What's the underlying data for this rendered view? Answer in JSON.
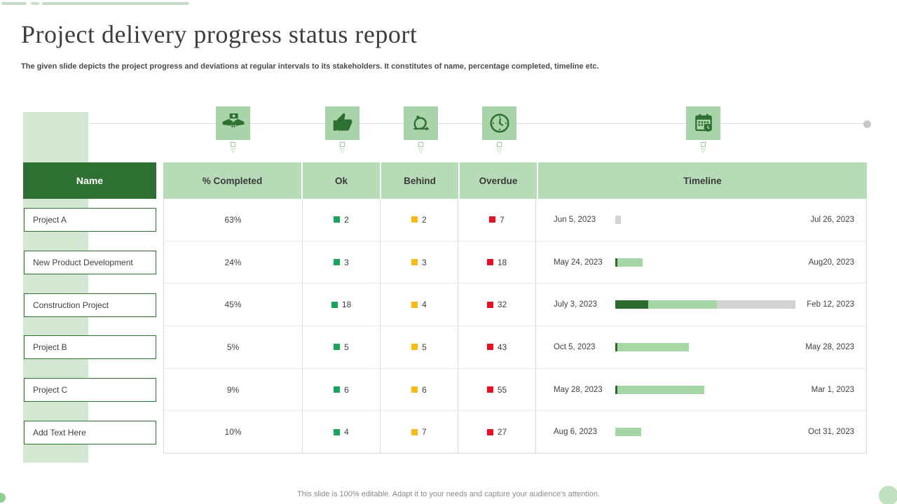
{
  "slide": {
    "title": "Project delivery progress status report",
    "subtitle": "The given slide depicts the project progress and deviations at regular intervals to its stakeholders. It  constitutes of name, percentage completed, timeline  etc.",
    "footer": "This slide is 100% editable.  Adapt it to your needs and capture your audience's attention."
  },
  "icons": [
    {
      "name": "handshake-icon"
    },
    {
      "name": "thumbs-up-icon"
    },
    {
      "name": "sprint-loop-icon"
    },
    {
      "name": "clock-icon"
    },
    {
      "name": "calendar-clock-icon"
    }
  ],
  "table": {
    "name_header": "Name",
    "columns": [
      "% Completed",
      "Ok",
      "Behind",
      "Overdue",
      "Timeline"
    ],
    "rows": [
      {
        "name": "Project A",
        "completed": "63%",
        "ok": "2",
        "behind": "2",
        "overdue": "7",
        "start": "Jun 5, 2023",
        "end": "Jul 26, 2023",
        "bar": {
          "dark": 0,
          "light": 0,
          "gray": 8
        }
      },
      {
        "name": "New Product Development",
        "completed": "24%",
        "ok": "3",
        "behind": "3",
        "overdue": "18",
        "start": "May 24, 2023",
        "end": "Aug20, 2023",
        "bar": {
          "dark": 3,
          "light": 36,
          "gray": 0
        }
      },
      {
        "name": "Construction Project",
        "completed": "45%",
        "ok": "18",
        "behind": "4",
        "overdue": "32",
        "start": "July 3, 2023",
        "end": "Feb 12, 2023",
        "bar": {
          "dark": 47,
          "light": 98,
          "gray": 112
        }
      },
      {
        "name": "Project B",
        "completed": "5%",
        "ok": "5",
        "behind": "5",
        "overdue": "43",
        "start": "Oct 5, 2023",
        "end": "May 28, 2023",
        "bar": {
          "dark": 3,
          "light": 102,
          "gray": 0
        }
      },
      {
        "name": "Project C",
        "completed": "9%",
        "ok": "6",
        "behind": "6",
        "overdue": "55",
        "start": "May 28, 2023",
        "end": "Mar 1, 2023",
        "bar": {
          "dark": 3,
          "light": 124,
          "gray": 0
        }
      },
      {
        "name": "Add Text Here",
        "completed": "10%",
        "ok": "4",
        "behind": "7",
        "overdue": "27",
        "start": "Aug 6, 2023",
        "end": "Oct 31, 2023",
        "bar": {
          "dark": 0,
          "light": 37,
          "gray": 0
        }
      }
    ]
  },
  "colors": {
    "dark_green": "#2e7031",
    "header_green": "#b7dbb7",
    "icon_bg_green": "#a9d3a9",
    "strip_green": "#d3e7d3",
    "bar_light": "#a5d6a5",
    "bar_dark": "#2d6a2d",
    "bar_gray": "#d2d2d2",
    "ok_square": "#1aa35c",
    "behind_square": "#f6bc14",
    "overdue_square": "#e81123"
  }
}
